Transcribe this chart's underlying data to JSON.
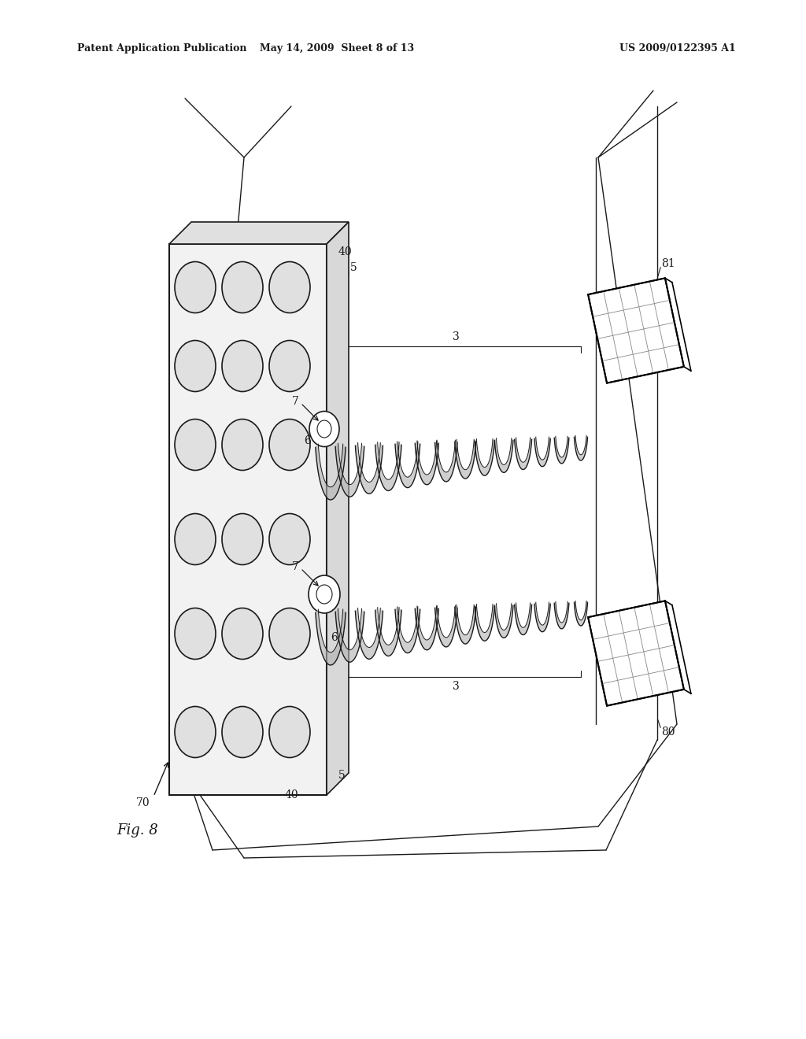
{
  "header_left": "Patent Application Publication",
  "header_mid": "May 14, 2009  Sheet 8 of 13",
  "header_right": "US 2009/0122395 A1",
  "fig_label": "Fig. 8",
  "bg_color": "#ffffff",
  "line_color": "#1a1a1a",
  "gray_fill": "#c8c8c8",
  "panel_face": "#f2f2f2",
  "panel_side": "#d8d8d8",
  "panel_top": "#e0e0e0"
}
